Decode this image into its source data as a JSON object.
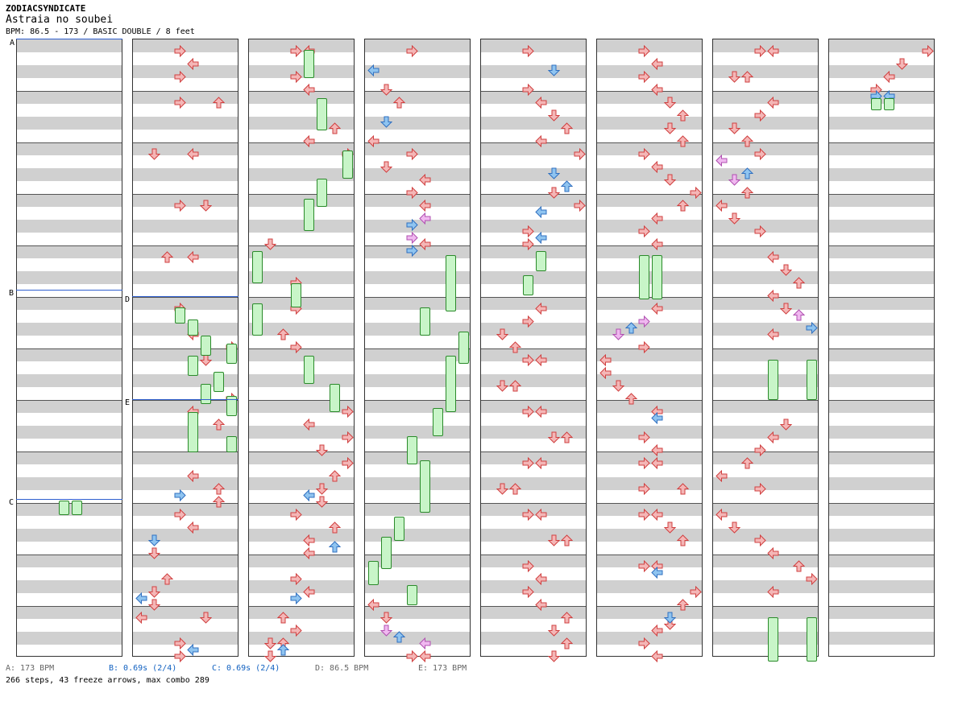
{
  "header": {
    "artist": "ZODIACSYNDICATE",
    "title": "Astraia no soubei",
    "bpm_line": "BPM: 86.5 - 173 / BASIC DOUBLE / 8 feet"
  },
  "markers": {
    "a": "A",
    "b": "B",
    "c": "C",
    "d": "D",
    "e": "E"
  },
  "legend": {
    "a": "A: 173 BPM",
    "b": "B: 0.69s (2/4)",
    "c": "C: 0.69s (2/4)",
    "d": "D: 86.5 BPM",
    "e": "E: 173 BPM"
  },
  "stats": "266 steps, 43 freeze arrows, max combo 289",
  "colors": {
    "red_arrow": "#f4b6b6",
    "red_border": "#d04040",
    "blue_arrow": "#8fc4f0",
    "blue_border": "#3070c0",
    "pink_arrow": "#f0b8f0",
    "pink_border": "#b050b0",
    "freeze_fill": "#c8f5c8",
    "freeze_border": "#2a8a2a",
    "marker_line": "#3060d0",
    "legend_blue": "#1060c0"
  },
  "columns": 8,
  "lanes": 8
}
